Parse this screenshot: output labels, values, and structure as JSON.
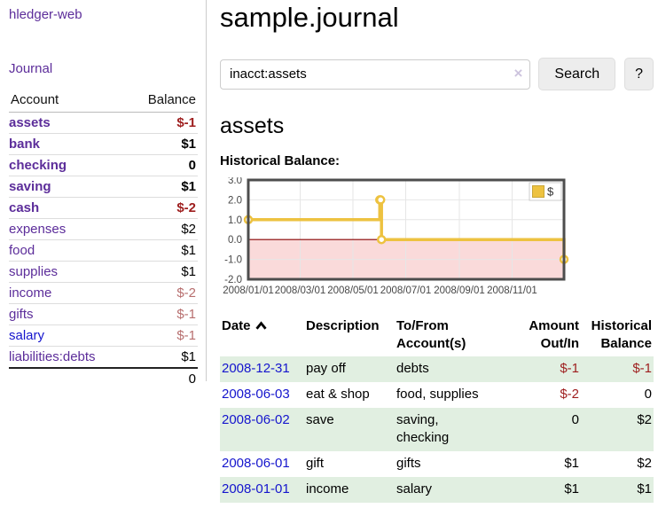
{
  "app": {
    "brand": "hledger-web",
    "nav_journal": "Journal"
  },
  "sidebar": {
    "headers": {
      "account": "Account",
      "balance": "Balance"
    },
    "accounts": [
      {
        "name": "assets",
        "depth": 1,
        "bold": true,
        "balance": "$-1",
        "tone": "neg"
      },
      {
        "name": "bank",
        "depth": 2,
        "bold": true,
        "balance": "$1"
      },
      {
        "name": "checking",
        "depth": 3,
        "bold": true,
        "balance": "0"
      },
      {
        "name": "saving",
        "depth": 3,
        "bold": true,
        "balance": "$1"
      },
      {
        "name": "cash",
        "depth": 2,
        "bold": true,
        "balance": "$-2",
        "tone": "neg"
      },
      {
        "name": "expenses",
        "depth": 1,
        "bold": false,
        "balance": "$2"
      },
      {
        "name": "food",
        "depth": 2,
        "bold": false,
        "balance": "$1"
      },
      {
        "name": "supplies",
        "depth": 2,
        "bold": false,
        "balance": "$1"
      },
      {
        "name": "income",
        "depth": 1,
        "bold": false,
        "balance": "$-2",
        "tone": "negsoft"
      },
      {
        "name": "gifts",
        "depth": 2,
        "bold": false,
        "balance": "$-1",
        "tone": "negsoft"
      },
      {
        "name": "salary",
        "depth": 2,
        "bold": false,
        "balance": "$-1",
        "tone": "negsoft",
        "blue": true
      },
      {
        "name": "liabilities:debts",
        "depth": 1,
        "bold": false,
        "balance": "$1"
      }
    ],
    "total": "0"
  },
  "main": {
    "title": "sample.journal",
    "search": {
      "value": "inacct:assets",
      "clear_label": "×",
      "button": "Search",
      "help_button": "?"
    },
    "account_heading": "assets",
    "chart_label": "Historical Balance:"
  },
  "chart_data": {
    "type": "line",
    "title": "Historical Balance of assets",
    "series": [
      {
        "name": "$",
        "color": "#edc240",
        "step": true,
        "points": [
          [
            "2008-01-01",
            1
          ],
          [
            "2008-06-01",
            2
          ],
          [
            "2008-06-02",
            2
          ],
          [
            "2008-06-03",
            0
          ],
          [
            "2008-12-31",
            -1
          ]
        ]
      }
    ],
    "x_ticks": [
      "2008/01/01",
      "2008/03/01",
      "2008/05/01",
      "2008/07/01",
      "2008/09/01",
      "2008/11/01"
    ],
    "y_ticks": [
      3.0,
      2.0,
      1.0,
      0.0,
      -1.0,
      -2.0
    ],
    "xlim": [
      "2008-01-01",
      "2008-12-31"
    ],
    "ylim": [
      -2,
      3
    ],
    "grid": true,
    "negative_region_color": "#fadada",
    "zero_line_color": "#8b0000",
    "border_color": "#4d4d4d",
    "legend": {
      "label": "$",
      "position": "top-right"
    }
  },
  "register": {
    "headers": {
      "date": "Date",
      "description": "Description",
      "account": "To/From\nAccount(s)",
      "amount": "Amount\nOut/In",
      "balance": "Historical\nBalance"
    },
    "rows": [
      {
        "date": "2008-12-31",
        "description": "pay off",
        "account": "debts",
        "amount": "$-1",
        "amount_tone": "neg",
        "balance": "$-1",
        "balance_tone": "neg"
      },
      {
        "date": "2008-06-03",
        "description": "eat & shop",
        "account": "food, supplies",
        "amount": "$-2",
        "amount_tone": "neg",
        "balance": "0"
      },
      {
        "date": "2008-06-02",
        "description": "save",
        "account": "saving,\nchecking",
        "amount": "0",
        "balance": "$2"
      },
      {
        "date": "2008-06-01",
        "description": "gift",
        "account": "gifts",
        "amount": "$1",
        "balance": "$2"
      },
      {
        "date": "2008-01-01",
        "description": "income",
        "account": "salary",
        "amount": "$1",
        "balance": "$1"
      }
    ]
  }
}
